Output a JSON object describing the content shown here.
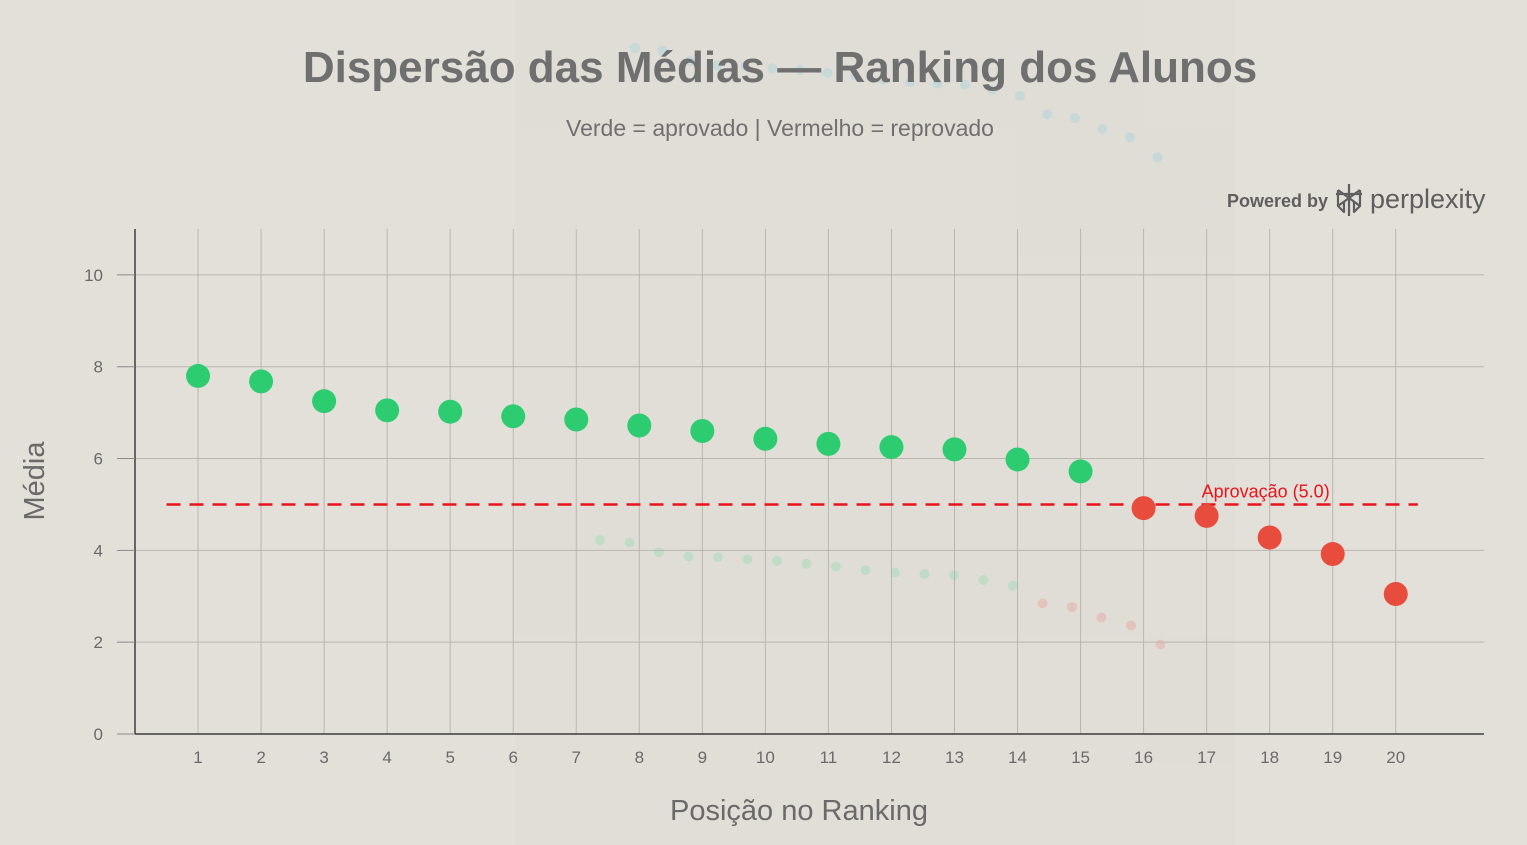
{
  "chart_data": {
    "type": "scatter",
    "title": "Dispersão das Médias — Ranking dos Alunos",
    "subtitle": "Verde = aprovado | Vermelho = reprovado",
    "xlabel": "Posição no Ranking",
    "ylabel": "Média",
    "xlim": [
      0,
      21.4
    ],
    "ylim": [
      0,
      11
    ],
    "x": [
      1,
      2,
      3,
      4,
      5,
      6,
      7,
      8,
      9,
      10,
      11,
      12,
      13,
      14,
      15,
      16,
      17,
      18,
      19,
      20
    ],
    "y": [
      7.8,
      7.68,
      7.25,
      7.05,
      7.02,
      6.92,
      6.85,
      6.72,
      6.6,
      6.43,
      6.32,
      6.25,
      6.2,
      5.98,
      5.72,
      4.92,
      4.75,
      4.28,
      3.92,
      3.05
    ],
    "threshold": 5.0,
    "x_ticks": [
      1,
      2,
      3,
      4,
      5,
      6,
      7,
      8,
      9,
      10,
      11,
      12,
      13,
      14,
      15,
      16,
      17,
      18,
      19,
      20
    ],
    "y_ticks": [
      0,
      2,
      4,
      6,
      8,
      10
    ],
    "grid": true,
    "colors": {
      "pass": "#2ecc71",
      "fail": "#e74c3c",
      "threshold_line": "#e8141c"
    },
    "annotation": {
      "text": "Aprovação (5.0)",
      "x": 17,
      "y": 5.0
    }
  },
  "branding": {
    "powered_by": "Powered by",
    "name": "perplexity",
    "icon": "perplexity-logo-icon"
  }
}
